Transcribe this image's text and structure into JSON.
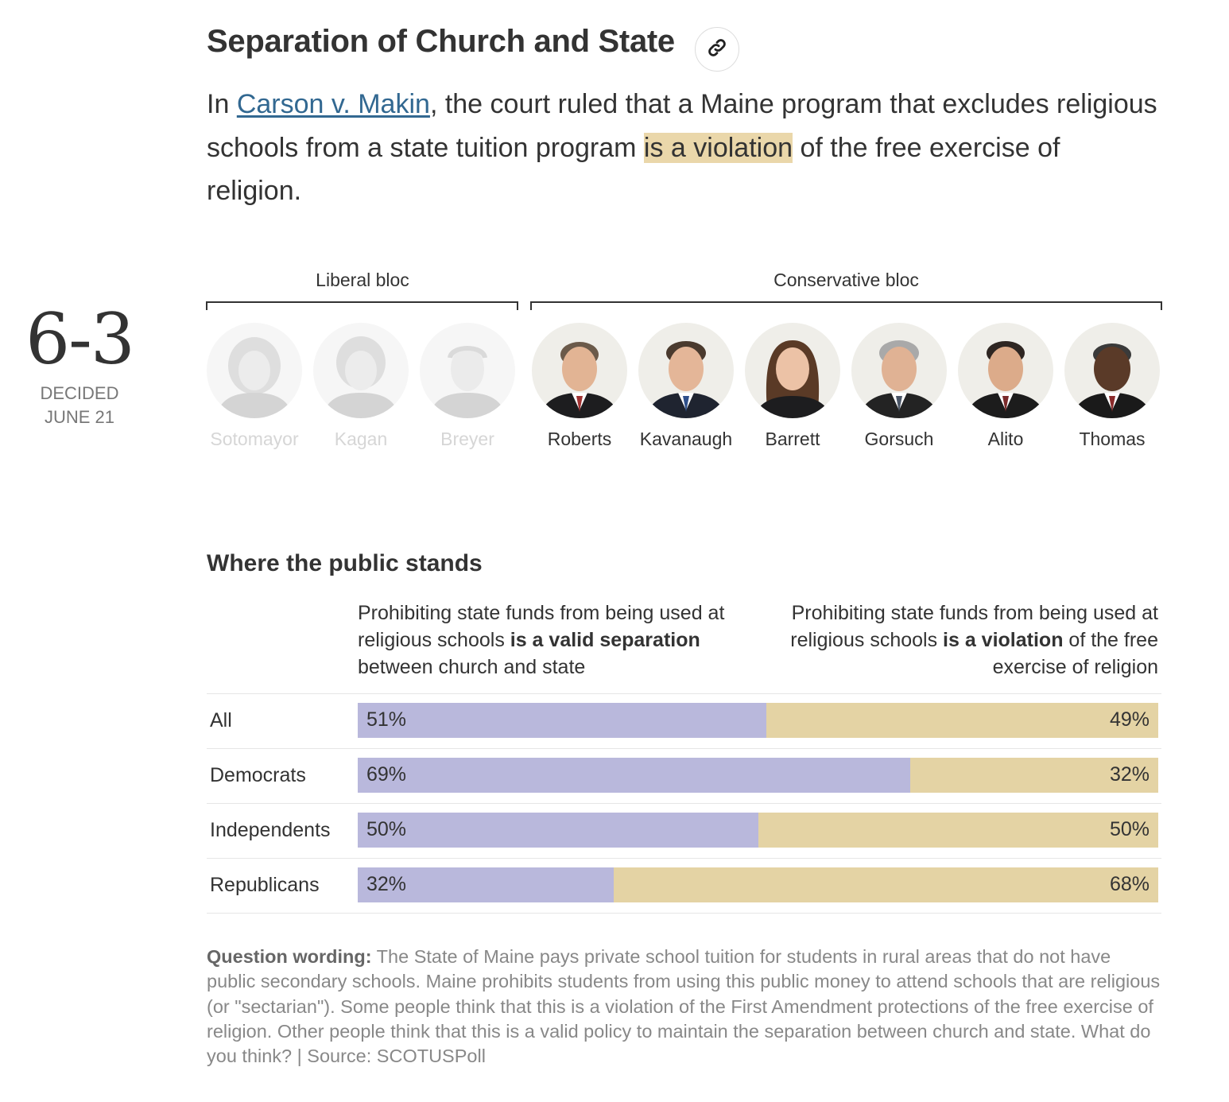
{
  "header": {
    "title": "Separation of Church and State",
    "summary_pre": "In ",
    "case_name": "Carson v. Makin",
    "summary_mid": ", the court ruled that a Maine program that excludes religious schools from a state tuition program ",
    "ruling_highlight": "is a violation",
    "summary_post": " of the free exercise of religion.",
    "link_icon": "link-icon"
  },
  "vote": {
    "count": "6-3",
    "decided_label": "DECIDED",
    "date": "JUNE 21"
  },
  "blocs": {
    "liberal_label": "Liberal bloc",
    "conservative_label": "Conservative bloc"
  },
  "justices": [
    {
      "name": "Sotomayor",
      "in_majority": false
    },
    {
      "name": "Kagan",
      "in_majority": false
    },
    {
      "name": "Breyer",
      "in_majority": false
    },
    {
      "name": "Roberts",
      "in_majority": true
    },
    {
      "name": "Kavanaugh",
      "in_majority": true
    },
    {
      "name": "Barrett",
      "in_majority": true
    },
    {
      "name": "Gorsuch",
      "in_majority": true
    },
    {
      "name": "Alito",
      "in_majority": true
    },
    {
      "name": "Thomas",
      "in_majority": true
    }
  ],
  "poll": {
    "heading": "Where the public stands",
    "left_header": {
      "pre": "Prohibiting state funds from being used at religious schools ",
      "bold": "is a valid separation",
      "post": " between church and state"
    },
    "right_header": {
      "pre": "Prohibiting state funds from being used at religious schools ",
      "bold": "is a violation",
      "post": " of the free exercise of religion"
    }
  },
  "colors": {
    "left_bar": "#b9b8dc",
    "right_bar": "#e4d3a4",
    "highlight": "#ead7aa",
    "link": "#326891"
  },
  "chart_data": {
    "type": "bar",
    "orientation": "horizontal",
    "stacked": true,
    "categories": [
      "All",
      "Democrats",
      "Independents",
      "Republicans"
    ],
    "series": [
      {
        "values": [
          51,
          69,
          50,
          32
        ],
        "labels": [
          "51%",
          "69%",
          "50%",
          "32%"
        ]
      },
      {
        "values": [
          49,
          32,
          50,
          68
        ],
        "labels": [
          "49%",
          "32%",
          "50%",
          "68%"
        ]
      }
    ],
    "xlim": [
      0,
      100
    ]
  },
  "footnote": {
    "label": "Question wording:",
    "text": " The State of Maine pays private school tuition for students in rural areas that do not have public secondary schools. Maine prohibits students from using this public money to attend schools that are religious (or \"sectarian\"). Some people think that this is a violation of the First Amendment protections of the free exercise of religion. Other people think that this is a valid policy to maintain the separation between church and state. What do you think? | Source: SCOTUSPoll"
  }
}
